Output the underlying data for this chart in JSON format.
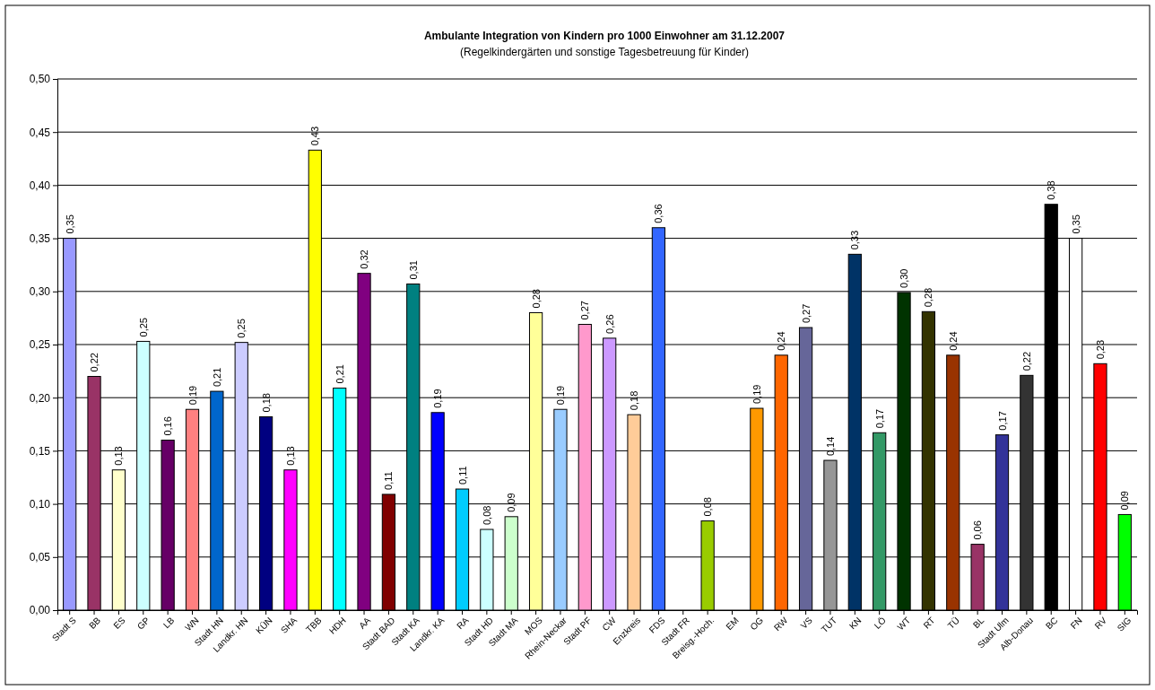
{
  "chart_data": {
    "type": "bar",
    "title": "Ambulante Integration von Kindern pro 1000 Einwohner am 31.12.2007",
    "subtitle": "(Regelkindergärten und sonstige Tagesbetreuung für Kinder)",
    "categories": [
      "Stadt S",
      "BB",
      "ES",
      "GP",
      "LB",
      "WN",
      "Stadt HN",
      "Landkr. HN",
      "KÜN",
      "SHA",
      "TBB",
      "HDH",
      "AA",
      "Stadt BAD",
      "Stadt KA",
      "Landkr. KA",
      "RA",
      "Stadt HD",
      "Stadt MA",
      "MOS",
      "Rhein-Neckar",
      "Stadt PF",
      "CW",
      "Enzkreis",
      "FDS",
      "Stadt FR",
      "Breisg.-Hoch.",
      "EM",
      "OG",
      "RW",
      "VS",
      "TUT",
      "KN",
      "LÖ",
      "WT",
      "RT",
      "TÜ",
      "BL",
      "Stadt Ulm",
      "Alb-Donau",
      "BC",
      "FN",
      "RV",
      "SIG"
    ],
    "values": [
      0.35,
      0.22,
      0.132,
      0.253,
      0.16,
      0.189,
      0.206,
      0.252,
      0.182,
      0.132,
      0.433,
      0.209,
      0.317,
      0.109,
      0.307,
      0.186,
      0.114,
      0.076,
      0.088,
      0.28,
      0.189,
      0.269,
      0.256,
      0.184,
      0.36,
      null,
      0.084,
      null,
      0.19,
      0.24,
      0.266,
      0.141,
      0.335,
      0.167,
      0.299,
      0.281,
      0.24,
      0.062,
      0.165,
      0.221,
      0.382,
      0.35,
      0.232,
      0.09
    ],
    "value_labels": [
      "0,35",
      "0,22",
      "0,13",
      "0,25",
      "0,16",
      "0,19",
      "0,21",
      "0,25",
      "0,18",
      "0,13",
      "0,43",
      "0,21",
      "0,32",
      "0,11",
      "0,31",
      "0,19",
      "0,11",
      "0,08",
      "0,09",
      "0,28",
      "0,19",
      "0,27",
      "0,26",
      "0,18",
      "0,36",
      null,
      "0,08",
      null,
      "0,19",
      "0,24",
      "0,27",
      "0,14",
      "0,33",
      "0,17",
      "0,30",
      "0,28",
      "0,24",
      "0,06",
      "0,17",
      "0,22",
      "0,38",
      "0,35",
      "0,23",
      "0,09"
    ],
    "colors": [
      "#9999ff",
      "#993366",
      "#ffffcc",
      "#ccffff",
      "#660066",
      "#ff8080",
      "#0066cc",
      "#ccccff",
      "#000080",
      "#ff00ff",
      "#ffff00",
      "#00ffff",
      "#800080",
      "#800000",
      "#008080",
      "#0000ff",
      "#00ccff",
      "#ccffff",
      "#ccffcc",
      "#ffff99",
      "#99ccff",
      "#ff99cc",
      "#cc99ff",
      "#ffcc99",
      "#3366ff",
      null,
      "#99cc00",
      null,
      "#ff9900",
      "#ff6600",
      "#666699",
      "#969696",
      "#003366",
      "#339966",
      "#003300",
      "#333300",
      "#993300",
      "#993366",
      "#333399",
      "#333333",
      "#000000",
      "#ffffff",
      "#ff0000",
      "#00ff00"
    ],
    "ylim": [
      0,
      0.5
    ],
    "yticks": [
      {
        "value": 0,
        "label": "0,00"
      },
      {
        "value": 0.05,
        "label": "0,05"
      },
      {
        "value": 0.1,
        "label": "0,10"
      },
      {
        "value": 0.15,
        "label": "0,15"
      },
      {
        "value": 0.2,
        "label": "0,20"
      },
      {
        "value": 0.25,
        "label": "0,25"
      },
      {
        "value": 0.3,
        "label": "0,30"
      },
      {
        "value": 0.35,
        "label": "0,35"
      },
      {
        "value": 0.4,
        "label": "0,40"
      },
      {
        "value": 0.45,
        "label": "0,45"
      },
      {
        "value": 0.5,
        "label": "0,50"
      }
    ],
    "grid": "y"
  }
}
